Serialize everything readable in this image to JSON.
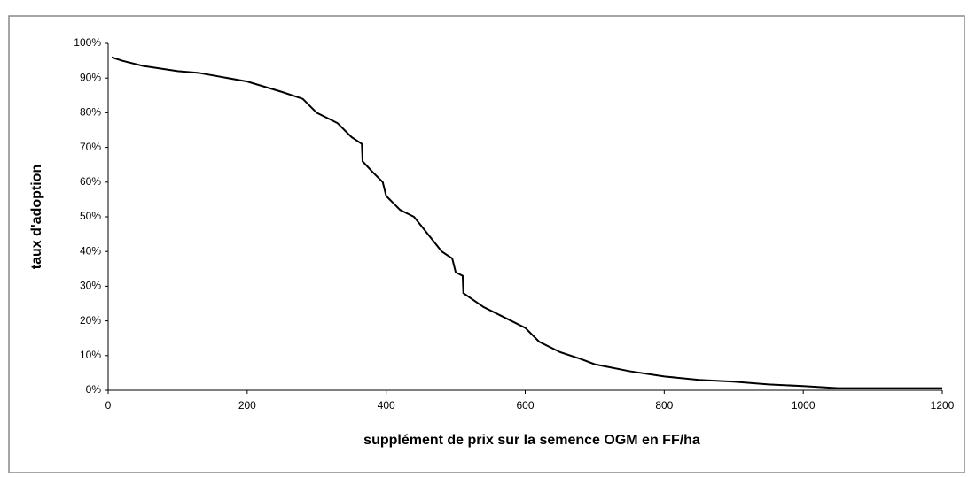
{
  "chart_data": {
    "type": "line",
    "x_label": "supplément de prix sur la semence OGM en FF/ha",
    "y_label": "taux d'adoption",
    "x": [
      5,
      20,
      50,
      100,
      130,
      200,
      250,
      280,
      300,
      330,
      350,
      365,
      366,
      380,
      395,
      400,
      420,
      440,
      460,
      480,
      495,
      500,
      510,
      511,
      540,
      570,
      600,
      610,
      620,
      650,
      680,
      700,
      750,
      800,
      850,
      900,
      950,
      1000,
      1050,
      1200
    ],
    "series": [
      {
        "color": "#000000",
        "values": [
          96,
          95,
          93.5,
          92,
          91.5,
          89,
          86,
          84,
          80,
          77,
          73,
          71,
          66,
          63,
          60,
          56,
          52,
          50,
          45,
          40,
          38,
          34,
          33,
          28,
          24,
          21,
          18,
          16,
          14,
          11,
          9,
          7.5,
          5.5,
          4,
          3,
          2.5,
          1.7,
          1.2,
          0.6,
          0.6
        ]
      }
    ],
    "xlim": [
      0,
      1200
    ],
    "xticks": [
      0,
      200,
      400,
      600,
      800,
      1000,
      1200
    ],
    "ylim": [
      0,
      100
    ],
    "yticks": [
      {
        "value": 0,
        "label": "0%"
      },
      {
        "value": 10,
        "label": "10%"
      },
      {
        "value": 20,
        "label": "20%"
      },
      {
        "value": 30,
        "label": "30%"
      },
      {
        "value": 40,
        "label": "40%"
      },
      {
        "value": 50,
        "label": "50%"
      },
      {
        "value": 60,
        "label": "60%"
      },
      {
        "value": 70,
        "label": "70%"
      },
      {
        "value": 80,
        "label": "80%"
      },
      {
        "value": 90,
        "label": "90%"
      },
      {
        "value": 100,
        "label": "100%"
      }
    ],
    "grid": false
  }
}
